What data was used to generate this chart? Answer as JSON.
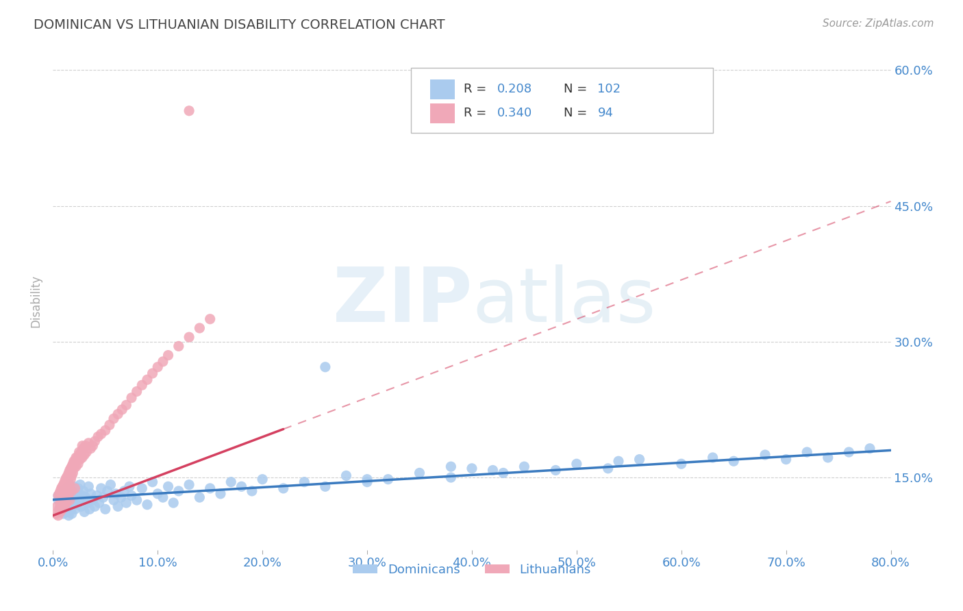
{
  "title": "DOMINICAN VS LITHUANIAN DISABILITY CORRELATION CHART",
  "source_text": "Source: ZipAtlas.com",
  "ylabel": "Disability",
  "dominicans": {
    "R": 0.208,
    "N": 102,
    "color": "#aacbee",
    "trend_color": "#3a7abf",
    "x": [
      0.005,
      0.005,
      0.007,
      0.008,
      0.009,
      0.01,
      0.01,
      0.011,
      0.012,
      0.013,
      0.013,
      0.014,
      0.014,
      0.015,
      0.015,
      0.016,
      0.016,
      0.017,
      0.017,
      0.018,
      0.018,
      0.019,
      0.02,
      0.02,
      0.021,
      0.022,
      0.023,
      0.024,
      0.025,
      0.026,
      0.027,
      0.028,
      0.029,
      0.03,
      0.031,
      0.033,
      0.034,
      0.035,
      0.036,
      0.038,
      0.04,
      0.042,
      0.044,
      0.046,
      0.048,
      0.05,
      0.052,
      0.055,
      0.058,
      0.06,
      0.062,
      0.065,
      0.068,
      0.07,
      0.073,
      0.075,
      0.08,
      0.085,
      0.09,
      0.095,
      0.1,
      0.105,
      0.11,
      0.115,
      0.12,
      0.13,
      0.14,
      0.15,
      0.16,
      0.17,
      0.18,
      0.19,
      0.2,
      0.22,
      0.24,
      0.26,
      0.28,
      0.3,
      0.32,
      0.35,
      0.38,
      0.4,
      0.43,
      0.45,
      0.48,
      0.5,
      0.53,
      0.56,
      0.6,
      0.63,
      0.65,
      0.68,
      0.7,
      0.72,
      0.74,
      0.76,
      0.78,
      0.54,
      0.26,
      0.38,
      0.42,
      0.3
    ],
    "y": [
      0.125,
      0.13,
      0.118,
      0.122,
      0.135,
      0.11,
      0.128,
      0.115,
      0.132,
      0.12,
      0.138,
      0.112,
      0.125,
      0.108,
      0.118,
      0.13,
      0.142,
      0.115,
      0.125,
      0.11,
      0.135,
      0.122,
      0.128,
      0.14,
      0.115,
      0.132,
      0.12,
      0.138,
      0.125,
      0.142,
      0.118,
      0.13,
      0.135,
      0.112,
      0.128,
      0.122,
      0.14,
      0.115,
      0.132,
      0.125,
      0.118,
      0.13,
      0.122,
      0.138,
      0.128,
      0.115,
      0.135,
      0.142,
      0.125,
      0.132,
      0.118,
      0.128,
      0.135,
      0.122,
      0.14,
      0.13,
      0.125,
      0.138,
      0.12,
      0.145,
      0.132,
      0.128,
      0.14,
      0.122,
      0.135,
      0.142,
      0.128,
      0.138,
      0.132,
      0.145,
      0.14,
      0.135,
      0.148,
      0.138,
      0.145,
      0.14,
      0.152,
      0.145,
      0.148,
      0.155,
      0.15,
      0.16,
      0.155,
      0.162,
      0.158,
      0.165,
      0.16,
      0.17,
      0.165,
      0.172,
      0.168,
      0.175,
      0.17,
      0.178,
      0.172,
      0.178,
      0.182,
      0.168,
      0.272,
      0.162,
      0.158,
      0.148
    ]
  },
  "lithuanians": {
    "R": 0.34,
    "N": 94,
    "color": "#f0a8b8",
    "trend_color": "#d44060",
    "x": [
      0.003,
      0.004,
      0.005,
      0.006,
      0.007,
      0.007,
      0.008,
      0.008,
      0.009,
      0.01,
      0.01,
      0.011,
      0.011,
      0.012,
      0.012,
      0.013,
      0.013,
      0.014,
      0.014,
      0.015,
      0.015,
      0.016,
      0.016,
      0.017,
      0.017,
      0.018,
      0.018,
      0.019,
      0.02,
      0.02,
      0.021,
      0.022,
      0.023,
      0.024,
      0.025,
      0.026,
      0.027,
      0.028,
      0.029,
      0.03,
      0.031,
      0.032,
      0.034,
      0.036,
      0.038,
      0.04,
      0.043,
      0.046,
      0.05,
      0.054,
      0.058,
      0.062,
      0.066,
      0.07,
      0.075,
      0.08,
      0.085,
      0.09,
      0.095,
      0.1,
      0.105,
      0.11,
      0.12,
      0.13,
      0.14,
      0.15,
      0.005,
      0.006,
      0.007,
      0.008,
      0.009,
      0.01,
      0.011,
      0.012,
      0.013,
      0.014,
      0.015,
      0.016,
      0.017,
      0.018,
      0.019,
      0.02,
      0.022,
      0.025,
      0.028,
      0.009,
      0.012,
      0.015,
      0.018,
      0.021,
      0.01,
      0.013,
      0.016,
      0.13
    ],
    "y": [
      0.11,
      0.118,
      0.108,
      0.115,
      0.122,
      0.112,
      0.12,
      0.128,
      0.115,
      0.125,
      0.132,
      0.118,
      0.135,
      0.122,
      0.14,
      0.128,
      0.145,
      0.135,
      0.148,
      0.138,
      0.152,
      0.142,
      0.155,
      0.148,
      0.158,
      0.152,
      0.162,
      0.155,
      0.165,
      0.16,
      0.168,
      0.162,
      0.172,
      0.165,
      0.175,
      0.17,
      0.178,
      0.172,
      0.182,
      0.175,
      0.185,
      0.178,
      0.188,
      0.182,
      0.185,
      0.19,
      0.195,
      0.198,
      0.202,
      0.208,
      0.215,
      0.22,
      0.225,
      0.23,
      0.238,
      0.245,
      0.252,
      0.258,
      0.265,
      0.272,
      0.278,
      0.285,
      0.295,
      0.305,
      0.315,
      0.325,
      0.13,
      0.132,
      0.135,
      0.138,
      0.14,
      0.142,
      0.145,
      0.148,
      0.15,
      0.152,
      0.155,
      0.158,
      0.16,
      0.162,
      0.165,
      0.168,
      0.172,
      0.178,
      0.185,
      0.125,
      0.128,
      0.132,
      0.135,
      0.138,
      0.118,
      0.122,
      0.125,
      0.555
    ]
  },
  "xlim": [
    0.0,
    0.8
  ],
  "ylim": [
    0.07,
    0.62
  ],
  "xticks": [
    0.0,
    0.1,
    0.2,
    0.3,
    0.4,
    0.5,
    0.6,
    0.7,
    0.8
  ],
  "yticks": [
    0.15,
    0.3,
    0.45,
    0.6
  ],
  "watermark_zip": "ZIP",
  "watermark_atlas": "atlas",
  "bg_color": "#ffffff",
  "grid_color": "#d0d0d0",
  "title_color": "#444444",
  "axis_label_color": "#4488cc",
  "trend_line_fixed": {
    "dom_x0": 0.0,
    "dom_y0": 0.1255,
    "dom_x1": 0.8,
    "dom_y1": 0.18,
    "lith_x0": 0.0,
    "lith_y0": 0.108,
    "lith_x1": 0.8,
    "lith_y1": 0.455
  }
}
